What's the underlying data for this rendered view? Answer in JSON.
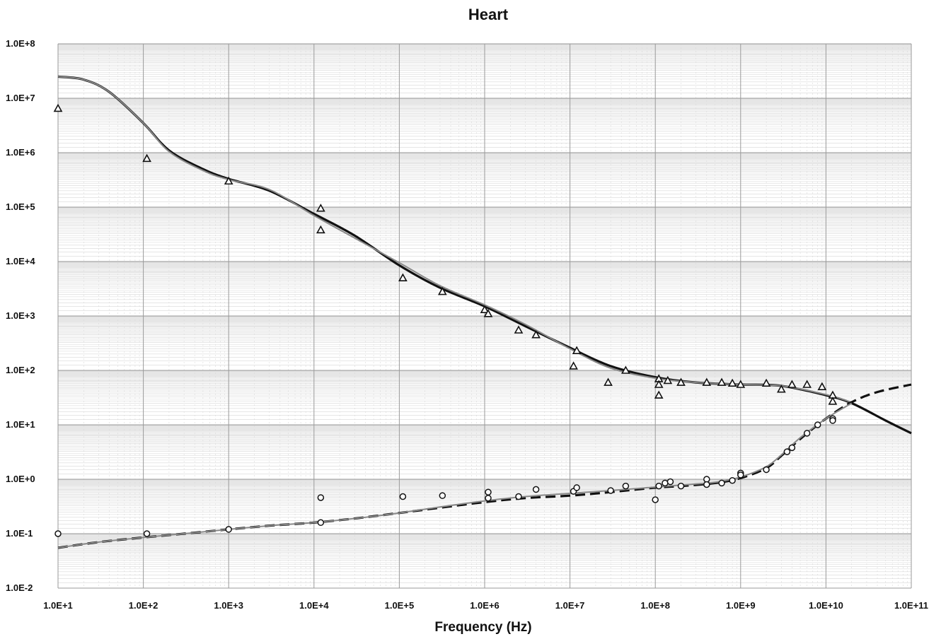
{
  "chart_data": {
    "type": "scatter",
    "title": "Heart",
    "xlabel": "Frequency  (Hz)",
    "ylabel": "",
    "xscale": "log",
    "yscale": "log",
    "xlim": [
      10,
      100000000000
    ],
    "ylim": [
      0.01,
      100000000
    ],
    "grid": true,
    "x_tick_labels": [
      "1.0E+1",
      "1.0E+2",
      "1.0E+3",
      "1.0E+4",
      "1.0E+5",
      "1.0E+6",
      "1.0E+7",
      "1.0E+8",
      "1.0E+9",
      "1.0E+10",
      "1.0E+11"
    ],
    "y_tick_labels": [
      "1.0E+8",
      "1.0E+7",
      "1.0E+6",
      "1.0E+5",
      "1.0E+4",
      "1.0E+3",
      "1.0E+2",
      "1.0E+1",
      "1.0E+0",
      "1.0E-1",
      "1.0E-2"
    ],
    "colors": {
      "line": "#111111",
      "line_alt": "#888888",
      "grid_major": "#9a9a9a",
      "grid_minor": "#d8d8d8"
    },
    "series": [
      {
        "style": "solid-line",
        "points": [
          [
            10,
            25000000
          ],
          [
            20,
            22000000
          ],
          [
            40,
            13000000
          ],
          [
            100,
            3500000
          ],
          [
            200,
            1100000
          ],
          [
            500,
            500000
          ],
          [
            1000,
            330000
          ],
          [
            3000,
            200000
          ],
          [
            10000,
            75000
          ],
          [
            30000,
            30000
          ],
          [
            100000,
            8500
          ],
          [
            300000,
            3300
          ],
          [
            1000000,
            1500
          ],
          [
            3000000,
            650
          ],
          [
            10000000,
            260
          ],
          [
            30000000,
            120
          ],
          [
            100000000,
            75
          ],
          [
            300000000,
            60
          ],
          [
            1000000000,
            55
          ],
          [
            3000000000,
            52
          ],
          [
            10000000000,
            35
          ],
          [
            20000000000,
            25
          ],
          [
            50000000000,
            12
          ],
          [
            100000000000,
            7
          ]
        ]
      },
      {
        "style": "gray-line",
        "points": [
          [
            10,
            25000000
          ],
          [
            20,
            22000000
          ],
          [
            40,
            13000000
          ],
          [
            100,
            3500000
          ],
          [
            200,
            1050000
          ],
          [
            500,
            470000
          ],
          [
            1000,
            320000
          ],
          [
            3000,
            210000
          ],
          [
            10000,
            70000
          ],
          [
            30000,
            27000
          ],
          [
            100000,
            9500
          ],
          [
            300000,
            3600
          ],
          [
            1000000,
            1600
          ],
          [
            3000000,
            700
          ],
          [
            10000000,
            250
          ],
          [
            30000000,
            110
          ],
          [
            100000000,
            72
          ],
          [
            300000000,
            60
          ],
          [
            1000000000,
            55
          ],
          [
            3000000000,
            52
          ],
          [
            10000000000,
            36
          ],
          [
            20000000000,
            26
          ]
        ]
      },
      {
        "style": "dashed-line",
        "points": [
          [
            10,
            0.055
          ],
          [
            30,
            0.07
          ],
          [
            100,
            0.085
          ],
          [
            300,
            0.1
          ],
          [
            1000,
            0.12
          ],
          [
            3000,
            0.14
          ],
          [
            10000,
            0.16
          ],
          [
            30000,
            0.19
          ],
          [
            100000,
            0.24
          ],
          [
            300000,
            0.3
          ],
          [
            1000000,
            0.38
          ],
          [
            3000000,
            0.45
          ],
          [
            10000000,
            0.5
          ],
          [
            30000000,
            0.58
          ],
          [
            100000000,
            0.7
          ],
          [
            200000000,
            0.75
          ],
          [
            500000000,
            0.85
          ],
          [
            1000000000,
            1.05
          ],
          [
            2000000000,
            1.6
          ],
          [
            3000000000,
            2.7
          ],
          [
            5000000000,
            5.5
          ],
          [
            10000000000,
            13
          ],
          [
            20000000000,
            26
          ],
          [
            40000000000,
            40
          ],
          [
            100000000000,
            55
          ]
        ]
      },
      {
        "style": "gray-line",
        "points": [
          [
            10,
            0.055
          ],
          [
            30,
            0.07
          ],
          [
            100,
            0.085
          ],
          [
            300,
            0.1
          ],
          [
            1000,
            0.12
          ],
          [
            3000,
            0.14
          ],
          [
            10000,
            0.16
          ],
          [
            30000,
            0.19
          ],
          [
            100000,
            0.24
          ],
          [
            300000,
            0.31
          ],
          [
            1000000,
            0.4
          ],
          [
            3000000,
            0.48
          ],
          [
            10000000,
            0.55
          ],
          [
            30000000,
            0.62
          ],
          [
            100000000,
            0.72
          ],
          [
            200000000,
            0.78
          ],
          [
            500000000,
            0.88
          ],
          [
            1000000000,
            1.1
          ],
          [
            2000000000,
            1.7
          ],
          [
            3000000000,
            2.8
          ],
          [
            5000000000,
            5.8
          ],
          [
            10000000000,
            13
          ],
          [
            20000000000,
            25
          ]
        ]
      },
      {
        "style": "triangle",
        "points": [
          [
            10,
            6500000
          ],
          [
            110,
            780000
          ],
          [
            1000,
            300000
          ],
          [
            12000,
            95000
          ],
          [
            12000,
            38000
          ],
          [
            110000,
            5000
          ],
          [
            320000,
            2800
          ],
          [
            1000000,
            1300
          ],
          [
            1100000,
            1100
          ],
          [
            2500000,
            550
          ],
          [
            4000000,
            450
          ],
          [
            12000000,
            230
          ],
          [
            11000000,
            120
          ],
          [
            28000000,
            60
          ],
          [
            45000000,
            100
          ],
          [
            110000000,
            70
          ],
          [
            110000000,
            55
          ],
          [
            110000000,
            35
          ],
          [
            140000000,
            65
          ],
          [
            200000000,
            60
          ],
          [
            400000000,
            60
          ],
          [
            600000000,
            60
          ],
          [
            800000000,
            58
          ],
          [
            1000000000,
            55
          ],
          [
            2000000000,
            58
          ],
          [
            3000000000,
            45
          ],
          [
            4000000000,
            55
          ],
          [
            6000000000,
            55
          ],
          [
            9000000000,
            50
          ],
          [
            12000000000,
            35
          ],
          [
            12000000000,
            27
          ]
        ]
      },
      {
        "style": "circle",
        "points": [
          [
            10,
            0.1
          ],
          [
            110,
            0.1
          ],
          [
            1000,
            0.12
          ],
          [
            12000,
            0.46
          ],
          [
            12000,
            0.16
          ],
          [
            110000,
            0.48
          ],
          [
            320000,
            0.5
          ],
          [
            1100000,
            0.58
          ],
          [
            1100000,
            0.45
          ],
          [
            2500000,
            0.48
          ],
          [
            4000000,
            0.65
          ],
          [
            11000000,
            0.6
          ],
          [
            12000000,
            0.7
          ],
          [
            30000000,
            0.62
          ],
          [
            45000000,
            0.75
          ],
          [
            100000000,
            0.42
          ],
          [
            110000000,
            0.75
          ],
          [
            130000000,
            0.85
          ],
          [
            150000000,
            0.9
          ],
          [
            200000000,
            0.75
          ],
          [
            400000000,
            1.0
          ],
          [
            400000000,
            0.8
          ],
          [
            600000000,
            0.85
          ],
          [
            800000000,
            0.95
          ],
          [
            1000000000,
            1.3
          ],
          [
            1000000000,
            1.2
          ],
          [
            2000000000,
            1.5
          ],
          [
            3500000000,
            3.2
          ],
          [
            4000000000,
            3.8
          ],
          [
            6000000000,
            7
          ],
          [
            8000000000,
            10
          ],
          [
            12000000000,
            13
          ],
          [
            12000000000,
            12
          ]
        ]
      }
    ]
  }
}
